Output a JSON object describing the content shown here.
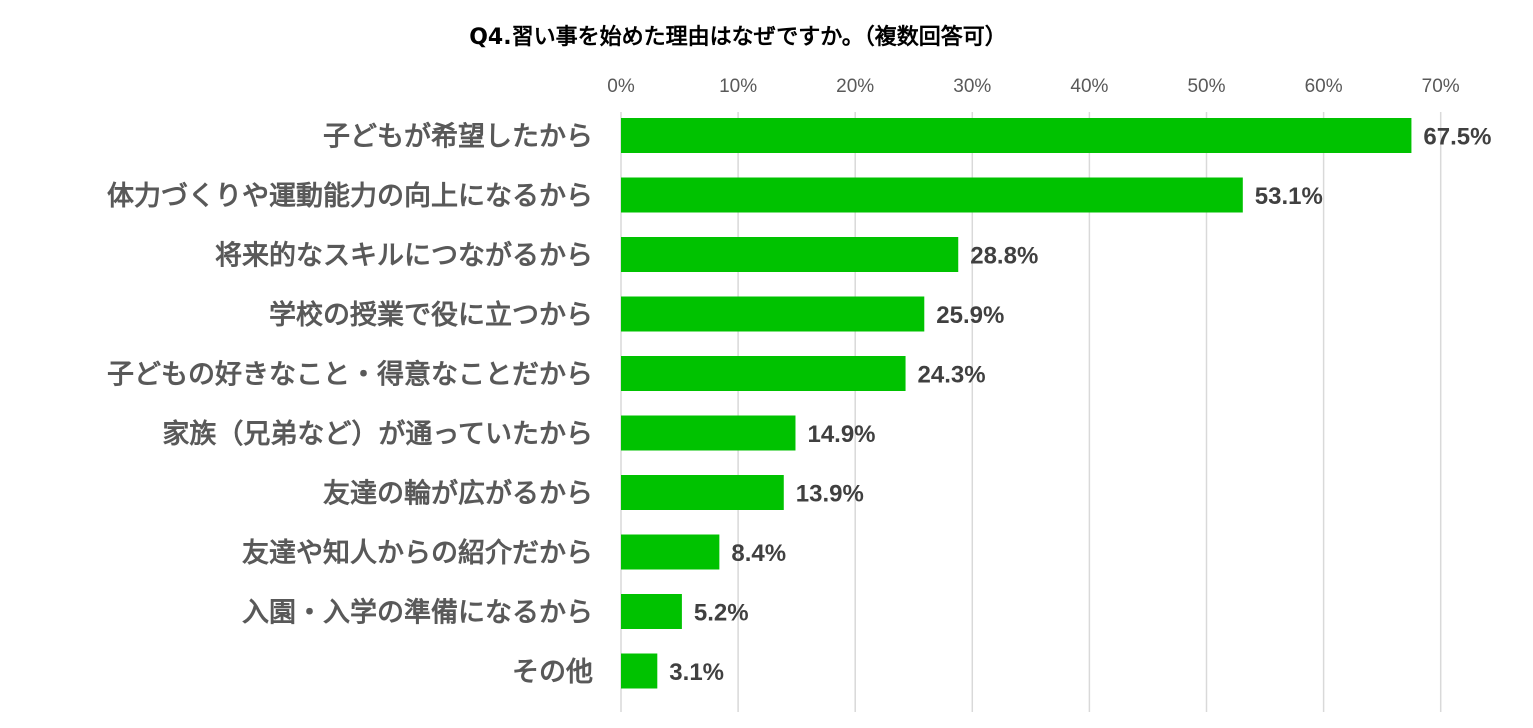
{
  "chart_data": {
    "type": "bar",
    "orientation": "horizontal",
    "title": "Q4.習い事を始めた理由はなぜですか。（複数回答可）",
    "categories": [
      "子どもが希望したから",
      "体力づくりや運動能力の向上になるから",
      "将来的なスキルにつながるから",
      "学校の授業で役に立つから",
      "子どもの好きなこと・得意なことだから",
      "家族（兄弟など）が通っていたから",
      "友達の輪が広がるから",
      "友達や知人からの紹介だから",
      "入園・入学の準備になるから",
      "その他"
    ],
    "values": [
      67.5,
      53.1,
      28.8,
      25.9,
      24.3,
      14.9,
      13.9,
      8.4,
      5.2,
      3.1
    ],
    "data_labels": [
      "67.5%",
      "53.1%",
      "28.8%",
      "25.9%",
      "24.3%",
      "14.9%",
      "13.9%",
      "8.4%",
      "5.2%",
      "3.1%"
    ],
    "x_ticks": [
      "0%",
      "10%",
      "20%",
      "30%",
      "40%",
      "50%",
      "60%",
      "70%"
    ],
    "xlim": [
      0,
      70
    ],
    "x_axis_position": "top",
    "grid": true,
    "legend": "none",
    "bar_color": "#00c200"
  }
}
